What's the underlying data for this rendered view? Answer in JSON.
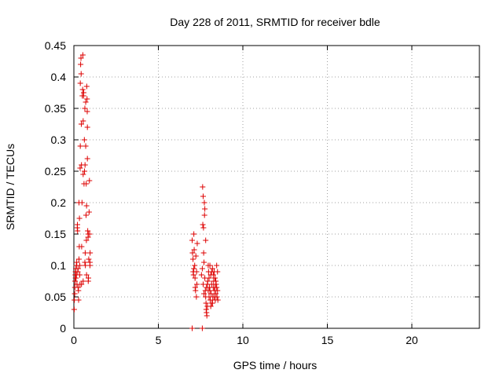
{
  "chart_data": {
    "type": "scatter",
    "title": "Day 228 of 2011, SRMTID for receiver bdle",
    "xlabel": "GPS time / hours",
    "ylabel": "SRMTID / TECUs",
    "xlim": [
      0,
      24
    ],
    "ylim": [
      0,
      0.45
    ],
    "xticks": [
      0,
      5,
      10,
      15,
      20
    ],
    "yticks": [
      0,
      0.05,
      0.1,
      0.15,
      0.2,
      0.25,
      0.3,
      0.35,
      0.4,
      0.45
    ],
    "ytick_labels": [
      "0",
      "0.05",
      "0.1",
      "0.15",
      "0.2",
      "0.25",
      "0.3",
      "0.35",
      "0.4",
      "0.45"
    ],
    "xtick_labels": [
      "0",
      "5",
      "10",
      "15",
      "20"
    ],
    "grid": true,
    "marker": "+",
    "color": "#dd0000",
    "series": [
      {
        "points": [
          [
            0.02,
            0.03
          ],
          [
            0.03,
            0.045
          ],
          [
            0.05,
            0.055
          ],
          [
            0.06,
            0.065
          ],
          [
            0.07,
            0.075
          ],
          [
            0.08,
            0.085
          ],
          [
            0.1,
            0.09
          ],
          [
            0.12,
            0.095
          ],
          [
            0.13,
            0.08
          ],
          [
            0.15,
            0.1
          ],
          [
            0.17,
            0.105
          ],
          [
            0.18,
            0.07
          ],
          [
            0.2,
            0.16
          ],
          [
            0.21,
            0.165
          ],
          [
            0.22,
            0.155
          ],
          [
            0.23,
            0.09
          ],
          [
            0.25,
            0.065
          ],
          [
            0.27,
            0.06
          ],
          [
            0.28,
            0.045
          ],
          [
            0.3,
            0.11
          ],
          [
            0.3,
            0.2
          ],
          [
            0.32,
            0.13
          ],
          [
            0.33,
            0.175
          ],
          [
            0.35,
            0.085
          ],
          [
            0.36,
            0.07
          ],
          [
            0.37,
            0.255
          ],
          [
            0.38,
            0.29
          ],
          [
            0.38,
            0.39
          ],
          [
            0.4,
            0.42
          ],
          [
            0.42,
            0.43
          ],
          [
            0.43,
            0.405
          ],
          [
            0.44,
            0.325
          ],
          [
            0.45,
            0.26
          ],
          [
            0.46,
            0.13
          ],
          [
            0.48,
            0.2
          ],
          [
            0.5,
            0.37
          ],
          [
            0.52,
            0.38
          ],
          [
            0.53,
            0.435
          ],
          [
            0.55,
            0.33
          ],
          [
            0.55,
            0.245
          ],
          [
            0.57,
            0.37
          ],
          [
            0.58,
            0.375
          ],
          [
            0.6,
            0.23
          ],
          [
            0.62,
            0.3
          ],
          [
            0.63,
            0.25
          ],
          [
            0.65,
            0.35
          ],
          [
            0.66,
            0.26
          ],
          [
            0.67,
            0.12
          ],
          [
            0.68,
            0.1
          ],
          [
            0.7,
            0.36
          ],
          [
            0.7,
            0.29
          ],
          [
            0.72,
            0.18
          ],
          [
            0.73,
            0.23
          ],
          [
            0.74,
            0.14
          ],
          [
            0.75,
            0.195
          ],
          [
            0.76,
            0.385
          ],
          [
            0.78,
            0.365
          ],
          [
            0.79,
            0.345
          ],
          [
            0.8,
            0.32
          ],
          [
            0.8,
            0.27
          ],
          [
            0.82,
            0.155
          ],
          [
            0.84,
            0.145
          ],
          [
            0.85,
            0.075
          ],
          [
            0.86,
            0.08
          ],
          [
            0.88,
            0.11
          ],
          [
            0.9,
            0.185
          ],
          [
            0.92,
            0.235
          ],
          [
            0.93,
            0.15
          ],
          [
            0.95,
            0.1
          ],
          [
            0.96,
            0.12
          ],
          [
            0.1,
            0.08
          ],
          [
            0.15,
            0.085
          ],
          [
            0.25,
            0.095
          ],
          [
            0.35,
            0.1
          ],
          [
            0.45,
            0.07
          ],
          [
            0.55,
            0.075
          ],
          [
            0.65,
            0.105
          ],
          [
            0.75,
            0.085
          ],
          [
            0.85,
            0.15
          ],
          [
            0.95,
            0.105
          ],
          [
            7.0,
            0.0
          ],
          [
            7.0,
            0.14
          ],
          [
            7.02,
            0.12
          ],
          [
            7.05,
            0.11
          ],
          [
            7.06,
            0.09
          ],
          [
            7.08,
            0.085
          ],
          [
            7.1,
            0.095
          ],
          [
            7.1,
            0.15
          ],
          [
            7.12,
            0.125
          ],
          [
            7.15,
            0.1
          ],
          [
            7.17,
            0.08
          ],
          [
            7.18,
            0.065
          ],
          [
            7.2,
            0.06
          ],
          [
            7.22,
            0.115
          ],
          [
            7.25,
            0.05
          ],
          [
            7.26,
            0.09
          ],
          [
            7.28,
            0.07
          ],
          [
            7.3,
            0.135
          ],
          [
            7.6,
            0.0
          ],
          [
            7.55,
            0.085
          ],
          [
            7.6,
            0.095
          ],
          [
            7.62,
            0.225
          ],
          [
            7.63,
            0.165
          ],
          [
            7.65,
            0.21
          ],
          [
            7.67,
            0.16
          ],
          [
            7.68,
            0.12
          ],
          [
            7.7,
            0.105
          ],
          [
            7.72,
            0.2
          ],
          [
            7.73,
            0.18
          ],
          [
            7.75,
            0.19
          ],
          [
            7.75,
            0.08
          ],
          [
            7.78,
            0.06
          ],
          [
            7.8,
            0.14
          ],
          [
            7.82,
            0.04
          ],
          [
            7.83,
            0.03
          ],
          [
            7.85,
            0.025
          ],
          [
            7.87,
            0.02
          ],
          [
            7.9,
            0.035
          ],
          [
            7.92,
            0.075
          ],
          [
            7.95,
            0.1
          ],
          [
            7.97,
            0.09
          ],
          [
            8.0,
            0.05
          ],
          [
            8.02,
            0.065
          ],
          [
            8.05,
            0.06
          ],
          [
            8.07,
            0.045
          ],
          [
            8.1,
            0.085
          ],
          [
            8.12,
            0.055
          ],
          [
            8.15,
            0.07
          ],
          [
            8.17,
            0.04
          ],
          [
            8.2,
            0.095
          ],
          [
            8.22,
            0.05
          ],
          [
            8.25,
            0.065
          ],
          [
            8.27,
            0.075
          ],
          [
            8.3,
            0.09
          ],
          [
            8.32,
            0.06
          ],
          [
            8.35,
            0.08
          ],
          [
            8.37,
            0.045
          ],
          [
            8.4,
            0.055
          ],
          [
            8.42,
            0.07
          ],
          [
            8.45,
            0.1
          ],
          [
            8.47,
            0.05
          ],
          [
            8.5,
            0.06
          ],
          [
            8.52,
            0.045
          ],
          [
            8.1,
            0.035
          ],
          [
            8.2,
            0.04
          ],
          [
            8.3,
            0.05
          ],
          [
            7.9,
            0.07
          ],
          [
            8.0,
            0.08
          ],
          [
            8.15,
            0.09
          ],
          [
            8.35,
            0.065
          ],
          [
            7.7,
            0.055
          ],
          [
            7.8,
            0.05
          ],
          [
            7.95,
            0.06
          ],
          [
            8.25,
            0.085
          ],
          [
            8.45,
            0.065
          ],
          [
            8.05,
            0.1
          ],
          [
            7.65,
            0.07
          ],
          [
            7.85,
            0.065
          ],
          [
            8.4,
            0.075
          ],
          [
            8.5,
            0.09
          ]
        ]
      }
    ]
  }
}
